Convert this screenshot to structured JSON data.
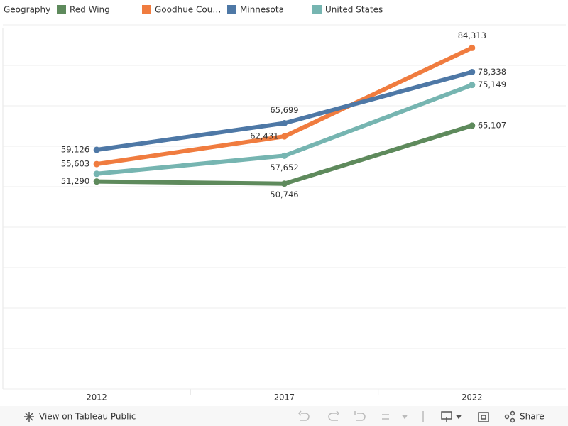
{
  "chart_data": {
    "type": "line",
    "legend_title": "Geography",
    "categories": [
      "2012",
      "2017",
      "2022"
    ],
    "series": [
      {
        "name": "Red Wing",
        "color": "#5e8a5c",
        "values": [
          51290,
          50746,
          65107
        ],
        "value_labels": [
          "51,290",
          "50,746",
          "65,107"
        ]
      },
      {
        "name": "Goodhue Cou…",
        "color": "#f07c3f",
        "values": [
          55603,
          62431,
          84313
        ],
        "value_labels": [
          "55,603",
          "62,431",
          "84,313"
        ]
      },
      {
        "name": "Minnesota",
        "color": "#4e78a6",
        "values": [
          59126,
          65699,
          78338
        ],
        "value_labels": [
          "59,126",
          "65,699",
          "78,338"
        ]
      },
      {
        "name": "United States",
        "color": "#76b5b1",
        "values": [
          53200,
          57652,
          75149
        ],
        "value_labels": [
          null,
          "57,652",
          "75,149"
        ]
      }
    ],
    "ylim": [
      0,
      90000
    ],
    "yticks": [
      0,
      10000,
      20000,
      30000,
      40000,
      50000,
      60000,
      70000,
      80000,
      90000
    ],
    "grid": true
  },
  "toolbar": {
    "link": "View on Tableau Public",
    "share": "Share"
  }
}
